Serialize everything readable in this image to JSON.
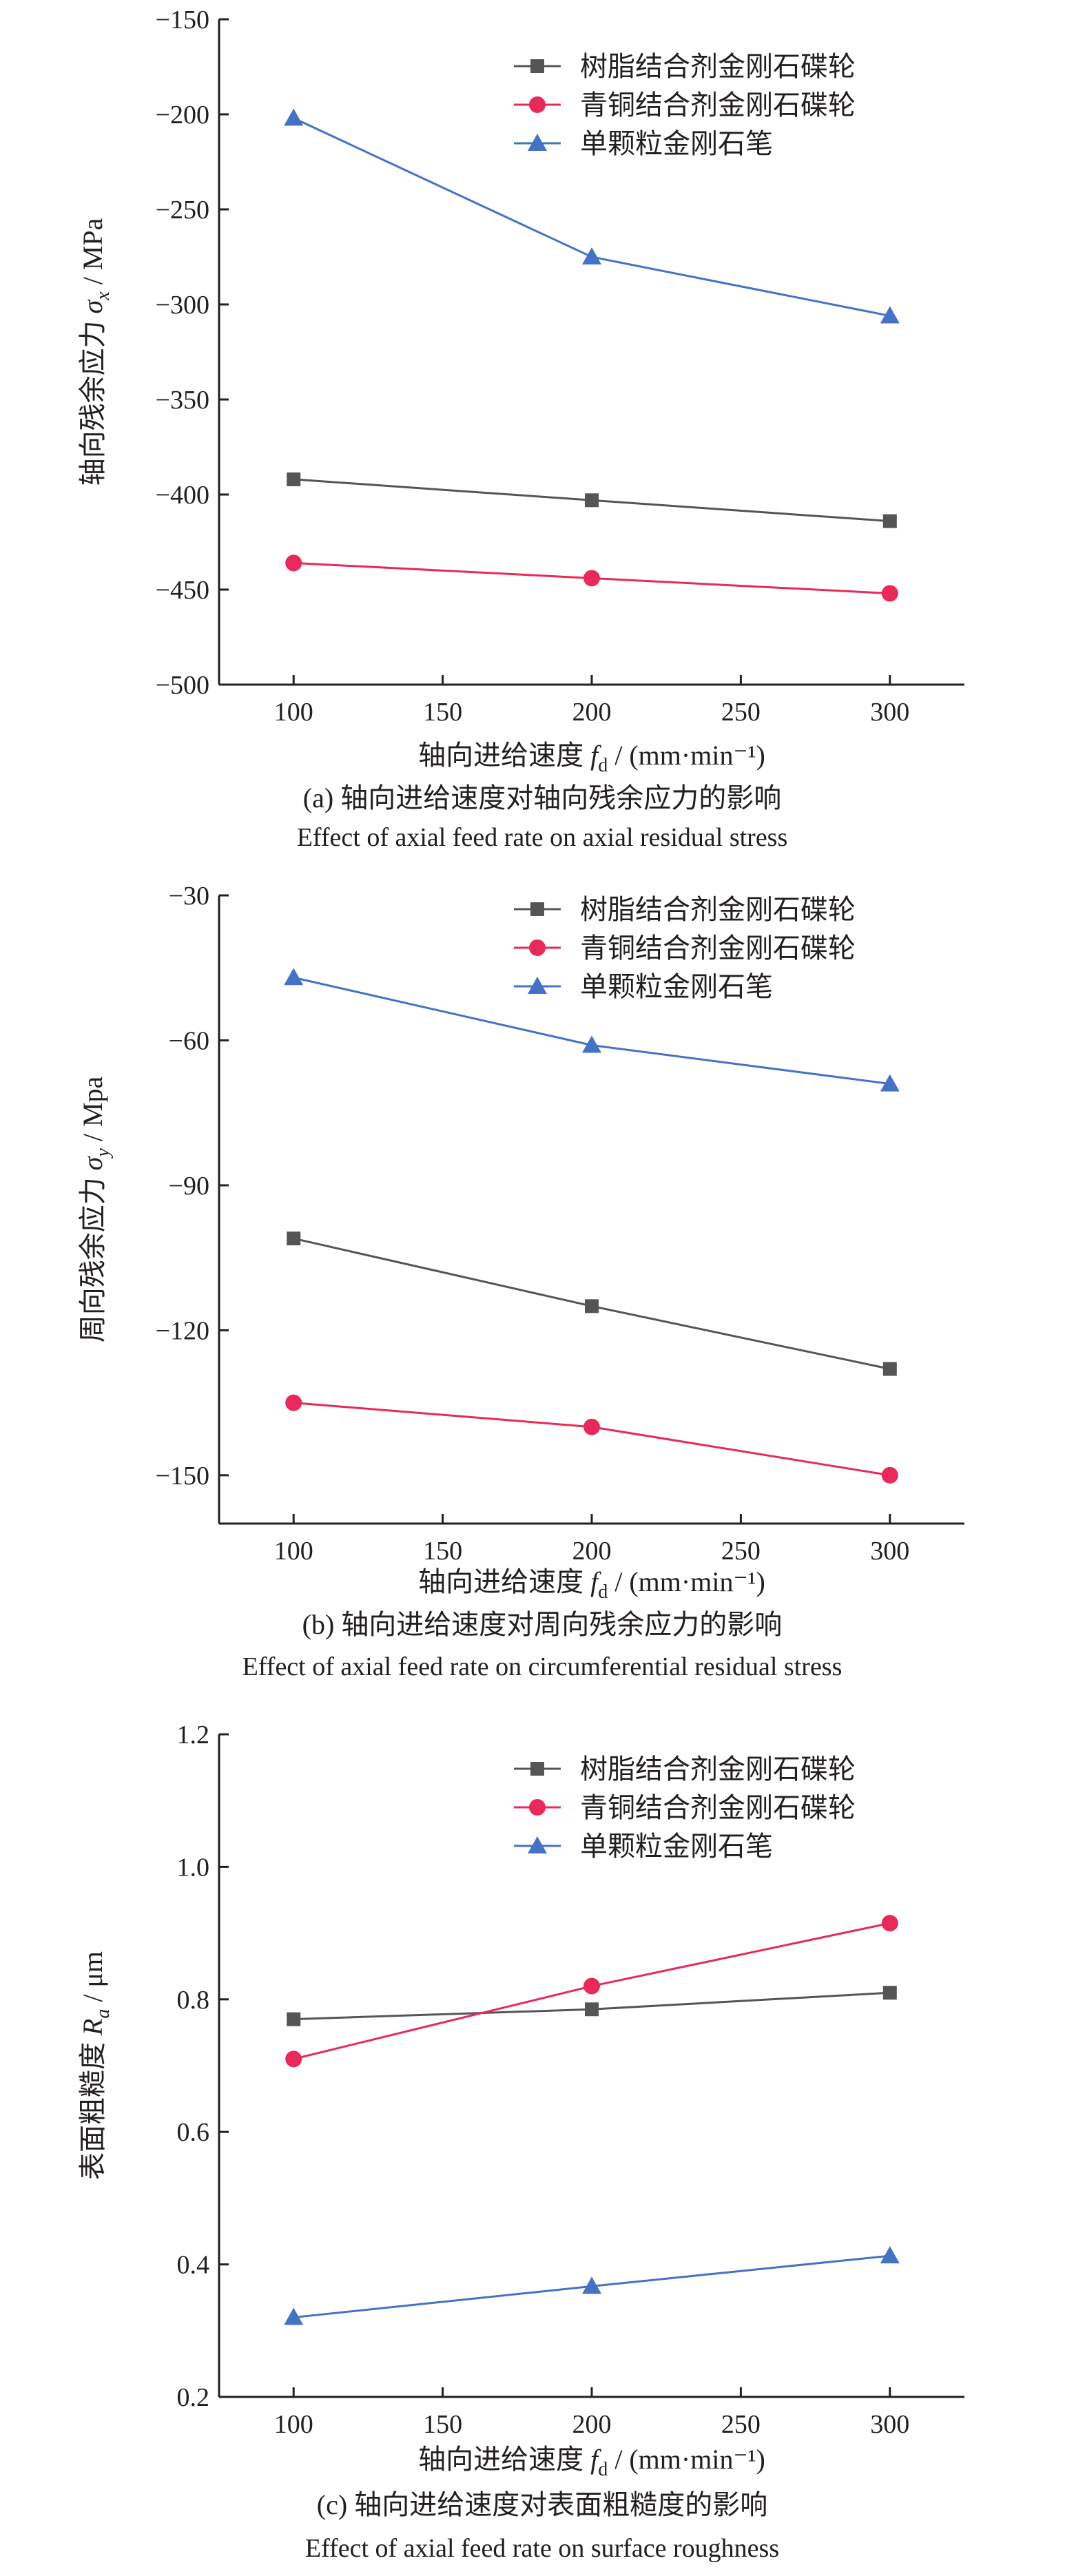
{
  "colors": {
    "resin": "#555555",
    "bronze": "#e8295a",
    "single": "#4472c4",
    "axis": "#231f20"
  },
  "legend_entries": [
    "树脂结合剂金刚石碟轮",
    "青铜结合剂金刚石碟轮",
    "单颗粒金刚石笔"
  ],
  "legend_position": "top-right",
  "chart_data": [
    {
      "type": "line",
      "caption_cn": "(a) 轴向进给速度对轴向残余应力的影响",
      "caption_en": "Effect of axial feed rate on axial residual stress",
      "ylabel_text": "轴向残余应力",
      "ylabel_symbol": "σ",
      "ylabel_sub": "x",
      "ylabel_unit": " / MPa",
      "xlabel_text": "轴向进给速度",
      "xlabel_symbol": "f",
      "xlabel_sub": "d",
      "xlabel_unit": " / (mm·min⁻¹)",
      "x": [
        100,
        200,
        300
      ],
      "xlim": [
        75,
        325
      ],
      "xticks": [
        100,
        150,
        200,
        250,
        300
      ],
      "xtick_labels": [
        "100",
        "150",
        "200",
        "250",
        "300"
      ],
      "ylim": [
        -500,
        -150
      ],
      "yticks": [
        -500,
        -450,
        -400,
        -350,
        -300,
        -250,
        -200,
        -150
      ],
      "ytick_labels": [
        "−500",
        "−450",
        "−400",
        "−350",
        "−300",
        "−250",
        "−200",
        "−150"
      ],
      "series": [
        {
          "name": "树脂结合剂金刚石碟轮",
          "marker": "square",
          "values": [
            -392,
            -403,
            -414
          ]
        },
        {
          "name": "青铜结合剂金刚石碟轮",
          "marker": "circle",
          "values": [
            -436,
            -444,
            -452
          ]
        },
        {
          "name": "单颗粒金刚石笔",
          "marker": "triangle",
          "values": [
            -202,
            -275,
            -306
          ]
        }
      ]
    },
    {
      "type": "line",
      "caption_cn": "(b) 轴向进给速度对周向残余应力的影响",
      "caption_en": "Effect of axial feed rate on circumferential residual stress",
      "ylabel_text": "周向残余应力",
      "ylabel_symbol": "σ",
      "ylabel_sub": "y",
      "ylabel_unit": " / Mpa",
      "xlabel_text": "轴向进给速度",
      "xlabel_symbol": "f",
      "xlabel_sub": "d",
      "xlabel_unit": " / (mm·min⁻¹)",
      "x": [
        100,
        200,
        300
      ],
      "xlim": [
        75,
        325
      ],
      "xticks": [
        100,
        150,
        200,
        250,
        300
      ],
      "xtick_labels": [
        "100",
        "150",
        "200",
        "250",
        "300"
      ],
      "ylim": [
        -160,
        -30
      ],
      "yticks": [
        -150,
        -120,
        -90,
        -60,
        -30
      ],
      "ytick_labels": [
        "−150",
        "−120",
        "−90",
        "−60",
        "−30"
      ],
      "series": [
        {
          "name": "树脂结合剂金刚石碟轮",
          "marker": "square",
          "values": [
            -101,
            -115,
            -128
          ]
        },
        {
          "name": "青铜结合剂金刚石碟轮",
          "marker": "circle",
          "values": [
            -135,
            -140,
            -150
          ]
        },
        {
          "name": "单颗粒金刚石笔",
          "marker": "triangle",
          "values": [
            -47,
            -61,
            -69
          ]
        }
      ]
    },
    {
      "type": "line",
      "caption_cn": "(c) 轴向进给速度对表面粗糙度的影响",
      "caption_en": "Effect of axial feed rate on surface roughness",
      "ylabel_text": "表面粗糙度",
      "ylabel_symbol": "R",
      "ylabel_sub": "a",
      "ylabel_unit": " / μm",
      "xlabel_text": "轴向进给速度",
      "xlabel_symbol": "f",
      "xlabel_sub": "d",
      "xlabel_unit": " / (mm·min⁻¹)",
      "x": [
        100,
        200,
        300
      ],
      "xlim": [
        75,
        325
      ],
      "xticks": [
        100,
        150,
        200,
        250,
        300
      ],
      "xtick_labels": [
        "100",
        "150",
        "200",
        "250",
        "300"
      ],
      "ylim": [
        0.2,
        1.2
      ],
      "yticks": [
        0.2,
        0.4,
        0.6,
        0.8,
        1.0,
        1.2
      ],
      "ytick_labels": [
        "0.2",
        "0.4",
        "0.6",
        "0.8",
        "1.0",
        "1.2"
      ],
      "series": [
        {
          "name": "树脂结合剂金刚石碟轮",
          "marker": "square",
          "values": [
            0.77,
            0.785,
            0.81
          ]
        },
        {
          "name": "青铜结合剂金刚石碟轮",
          "marker": "circle",
          "values": [
            0.71,
            0.82,
            0.915
          ]
        },
        {
          "name": "单颗粒金刚石笔",
          "marker": "triangle",
          "values": [
            0.32,
            0.367,
            0.413
          ]
        }
      ]
    }
  ]
}
